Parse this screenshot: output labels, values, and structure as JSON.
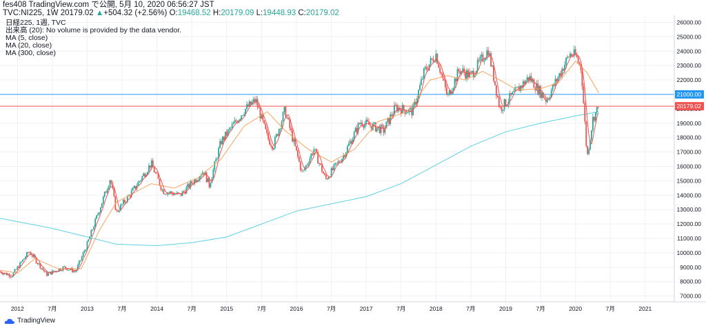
{
  "header": {
    "line1": "fes408 TradingView.com で公開, 5月 10, 2020 06:56:27 JST",
    "symbol": "TVC:NI225, 1W",
    "last": "20179.02",
    "change_arrow": "▲",
    "change": "+504.32 (+2.56%)",
    "o_label": "O:",
    "o": "19468.52",
    "h_label": "H:",
    "h": "20179.09",
    "l_label": "L:",
    "l": "19448.93",
    "c_label": "C:",
    "c": "20179.02"
  },
  "legend": {
    "series": "日経225, 1週, TVC",
    "volume": "出来高 (20): No volume is provided by the data vendor.",
    "ma5": "MA (5, close)",
    "ma20": "MA (20, close)",
    "ma300": "MA (300, close)"
  },
  "brand": {
    "name": "TradingView"
  },
  "colors": {
    "up": "#26a69a",
    "down": "#ef5350",
    "ma5": "#ef5350",
    "ma20": "#f7a35c",
    "ma300": "#5ccfe6",
    "hline_blue": "#2196f3",
    "hline_red": "#ef5350",
    "grid": "#eef0f3"
  },
  "chart_data": {
    "type": "candlestick",
    "ylim": [
      6600,
      26500
    ],
    "yticks": [
      7000,
      8000,
      9000,
      10000,
      11000,
      12000,
      13000,
      14000,
      15000,
      16000,
      17000,
      18000,
      19000,
      20000,
      21000,
      22000,
      23000,
      24000,
      25000,
      26000
    ],
    "ytick_labels": [
      "7000.00",
      "8000.00",
      "9000.00",
      "10000.00",
      "11000.00",
      "12000.00",
      "13000.00",
      "14000.00",
      "15000.00",
      "16000.00",
      "17000.00",
      "18000.00",
      "19000.00",
      "20000.00",
      "21000.00",
      "22000.00",
      "23000.00",
      "24000.00",
      "25000.00",
      "26000.00"
    ],
    "xlim": [
      "2011-10",
      "2021-06"
    ],
    "xticks": [
      {
        "t": "2012-01",
        "label": "2012"
      },
      {
        "t": "2012-07",
        "label": "7月"
      },
      {
        "t": "2013-01",
        "label": "2013"
      },
      {
        "t": "2013-07",
        "label": "7月"
      },
      {
        "t": "2014-01",
        "label": "2014"
      },
      {
        "t": "2014-07",
        "label": "7月"
      },
      {
        "t": "2015-01",
        "label": "2015"
      },
      {
        "t": "2015-07",
        "label": "7月"
      },
      {
        "t": "2016-01",
        "label": "2016"
      },
      {
        "t": "2016-07",
        "label": "7月"
      },
      {
        "t": "2017-01",
        "label": "2017"
      },
      {
        "t": "2017-07",
        "label": "7月"
      },
      {
        "t": "2018-01",
        "label": "2018"
      },
      {
        "t": "2018-07",
        "label": "7月"
      },
      {
        "t": "2019-01",
        "label": "2019"
      },
      {
        "t": "2019-07",
        "label": "7月"
      },
      {
        "t": "2020-01",
        "label": "2020"
      },
      {
        "t": "2020-07",
        "label": "7月"
      },
      {
        "t": "2021-01",
        "label": "2021"
      }
    ],
    "price_path": [
      [
        "2011-10",
        8700
      ],
      [
        "2011-12",
        8400
      ],
      [
        "2012-03",
        10100
      ],
      [
        "2012-06",
        8500
      ],
      [
        "2012-09",
        9000
      ],
      [
        "2012-11",
        8700
      ],
      [
        "2013-01",
        10600
      ],
      [
        "2013-05",
        15200
      ],
      [
        "2013-06",
        12800
      ],
      [
        "2013-09",
        14400
      ],
      [
        "2013-12",
        16200
      ],
      [
        "2014-02",
        14300
      ],
      [
        "2014-05",
        14000
      ],
      [
        "2014-09",
        15700
      ],
      [
        "2014-10",
        14700
      ],
      [
        "2014-12",
        17700
      ],
      [
        "2015-04",
        19900
      ],
      [
        "2015-06",
        20600
      ],
      [
        "2015-08",
        18000
      ],
      [
        "2015-09",
        17400
      ],
      [
        "2015-11",
        19900
      ],
      [
        "2016-02",
        15500
      ],
      [
        "2016-04",
        17200
      ],
      [
        "2016-06",
        15100
      ],
      [
        "2016-09",
        16700
      ],
      [
        "2016-12",
        19100
      ],
      [
        "2017-04",
        18500
      ],
      [
        "2017-06",
        20100
      ],
      [
        "2017-09",
        19800
      ],
      [
        "2017-11",
        22600
      ],
      [
        "2018-01",
        23800
      ],
      [
        "2018-03",
        20800
      ],
      [
        "2018-05",
        22700
      ],
      [
        "2018-07",
        22300
      ],
      [
        "2018-10",
        24100
      ],
      [
        "2018-12",
        20000
      ],
      [
        "2019-03",
        21300
      ],
      [
        "2019-05",
        22200
      ],
      [
        "2019-08",
        20600
      ],
      [
        "2019-12",
        23800
      ],
      [
        "2020-01",
        23700
      ],
      [
        "2020-02",
        22800
      ],
      [
        "2020-03",
        16600
      ],
      [
        "2020-04",
        19300
      ],
      [
        "2020-05",
        20179
      ]
    ],
    "ma20_path": [
      [
        "2011-10",
        8800
      ],
      [
        "2012-01",
        8600
      ],
      [
        "2012-04",
        9600
      ],
      [
        "2012-08",
        8900
      ],
      [
        "2012-12",
        8900
      ],
      [
        "2013-03",
        11500
      ],
      [
        "2013-06",
        13500
      ],
      [
        "2013-12",
        14800
      ],
      [
        "2014-04",
        14500
      ],
      [
        "2014-08",
        15200
      ],
      [
        "2014-12",
        16500
      ],
      [
        "2015-04",
        18800
      ],
      [
        "2015-08",
        19800
      ],
      [
        "2015-11",
        18500
      ],
      [
        "2016-03",
        17200
      ],
      [
        "2016-07",
        16300
      ],
      [
        "2016-11",
        17200
      ],
      [
        "2017-03",
        19100
      ],
      [
        "2017-08",
        19800
      ],
      [
        "2017-12",
        22000
      ],
      [
        "2018-03",
        22300
      ],
      [
        "2018-06",
        22000
      ],
      [
        "2018-09",
        22600
      ],
      [
        "2018-12",
        22000
      ],
      [
        "2019-03",
        21300
      ],
      [
        "2019-07",
        21400
      ],
      [
        "2019-10",
        21800
      ],
      [
        "2020-01",
        23300
      ],
      [
        "2020-03",
        22500
      ],
      [
        "2020-05",
        21100
      ]
    ],
    "ma300_path": [
      [
        "2011-10",
        12400
      ],
      [
        "2012-07",
        11700
      ],
      [
        "2013-01",
        11100
      ],
      [
        "2013-06",
        10600
      ],
      [
        "2014-01",
        10500
      ],
      [
        "2014-07",
        10700
      ],
      [
        "2015-01",
        11100
      ],
      [
        "2015-07",
        12000
      ],
      [
        "2016-01",
        12900
      ],
      [
        "2016-07",
        13400
      ],
      [
        "2017-01",
        13900
      ],
      [
        "2017-07",
        14800
      ],
      [
        "2018-01",
        16100
      ],
      [
        "2018-07",
        17400
      ],
      [
        "2019-01",
        18400
      ],
      [
        "2019-07",
        19000
      ],
      [
        "2020-01",
        19500
      ],
      [
        "2020-05",
        19800
      ]
    ],
    "hlines": [
      {
        "value": 21000,
        "label": "21000.00",
        "color": "#2196f3"
      },
      {
        "value": 20179.02,
        "label": "20179.02",
        "color": "#ef5350"
      }
    ]
  }
}
